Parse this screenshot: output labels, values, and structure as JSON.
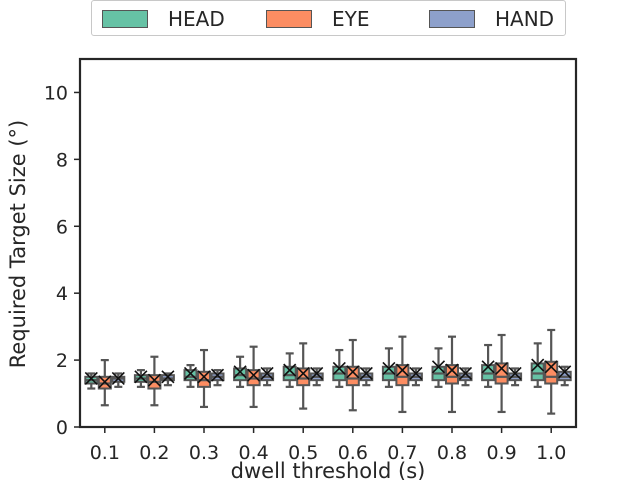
{
  "chart_data": {
    "type": "box",
    "title": "",
    "xlabel": "dwell threshold (s)",
    "ylabel": "Required Target Size (°)",
    "ylim": [
      0,
      11
    ],
    "yticks": [
      0,
      2,
      4,
      6,
      8,
      10
    ],
    "categories": [
      "0.1",
      "0.2",
      "0.3",
      "0.4",
      "0.5",
      "0.6",
      "0.7",
      "0.8",
      "0.9",
      "1.0"
    ],
    "legend_placement": "top-center",
    "mean_marker": "x",
    "series": [
      {
        "name": "HEAD",
        "color": "#66c2a5",
        "boxes": [
          {
            "whislo": 1.15,
            "q1": 1.3,
            "med": 1.4,
            "q3": 1.5,
            "whishi": 1.6,
            "mean": 1.45
          },
          {
            "whislo": 1.2,
            "q1": 1.35,
            "med": 1.45,
            "q3": 1.55,
            "whishi": 1.7,
            "mean": 1.5
          },
          {
            "whislo": 1.2,
            "q1": 1.4,
            "med": 1.5,
            "q3": 1.7,
            "whishi": 1.85,
            "mean": 1.6
          },
          {
            "whislo": 1.2,
            "q1": 1.4,
            "med": 1.55,
            "q3": 1.75,
            "whishi": 2.1,
            "mean": 1.65
          },
          {
            "whislo": 1.2,
            "q1": 1.4,
            "med": 1.55,
            "q3": 1.8,
            "whishi": 2.2,
            "mean": 1.7
          },
          {
            "whislo": 1.2,
            "q1": 1.4,
            "med": 1.6,
            "q3": 1.8,
            "whishi": 2.3,
            "mean": 1.75
          },
          {
            "whislo": 1.2,
            "q1": 1.4,
            "med": 1.6,
            "q3": 1.8,
            "whishi": 2.35,
            "mean": 1.75
          },
          {
            "whislo": 1.2,
            "q1": 1.4,
            "med": 1.6,
            "q3": 1.8,
            "whishi": 2.35,
            "mean": 1.8
          },
          {
            "whislo": 1.2,
            "q1": 1.4,
            "med": 1.6,
            "q3": 1.85,
            "whishi": 2.45,
            "mean": 1.8
          },
          {
            "whislo": 1.2,
            "q1": 1.4,
            "med": 1.6,
            "q3": 1.9,
            "whishi": 2.5,
            "mean": 1.85
          }
        ]
      },
      {
        "name": "EYE",
        "color": "#fc8d62",
        "boxes": [
          {
            "whislo": 0.65,
            "q1": 1.15,
            "med": 1.3,
            "q3": 1.5,
            "whishi": 2.0,
            "mean": 1.35
          },
          {
            "whislo": 0.65,
            "q1": 1.15,
            "med": 1.35,
            "q3": 1.55,
            "whishi": 2.1,
            "mean": 1.4
          },
          {
            "whislo": 0.6,
            "q1": 1.2,
            "med": 1.4,
            "q3": 1.65,
            "whishi": 2.3,
            "mean": 1.5
          },
          {
            "whislo": 0.6,
            "q1": 1.25,
            "med": 1.45,
            "q3": 1.7,
            "whishi": 2.4,
            "mean": 1.55
          },
          {
            "whislo": 0.55,
            "q1": 1.25,
            "med": 1.45,
            "q3": 1.75,
            "whishi": 2.5,
            "mean": 1.6
          },
          {
            "whislo": 0.5,
            "q1": 1.25,
            "med": 1.45,
            "q3": 1.8,
            "whishi": 2.6,
            "mean": 1.65
          },
          {
            "whislo": 0.45,
            "q1": 1.25,
            "med": 1.5,
            "q3": 1.85,
            "whishi": 2.7,
            "mean": 1.7
          },
          {
            "whislo": 0.45,
            "q1": 1.3,
            "med": 1.5,
            "q3": 1.85,
            "whishi": 2.7,
            "mean": 1.7
          },
          {
            "whislo": 0.45,
            "q1": 1.3,
            "med": 1.5,
            "q3": 1.9,
            "whishi": 2.75,
            "mean": 1.75
          },
          {
            "whislo": 0.4,
            "q1": 1.3,
            "med": 1.5,
            "q3": 1.95,
            "whishi": 2.9,
            "mean": 1.8
          }
        ]
      },
      {
        "name": "HAND",
        "color": "#8da0cb",
        "boxes": [
          {
            "whislo": 1.2,
            "q1": 1.35,
            "med": 1.45,
            "q3": 1.5,
            "whishi": 1.6,
            "mean": 1.45
          },
          {
            "whislo": 1.25,
            "q1": 1.4,
            "med": 1.45,
            "q3": 1.55,
            "whishi": 1.6,
            "mean": 1.5
          },
          {
            "whislo": 1.25,
            "q1": 1.4,
            "med": 1.5,
            "q3": 1.6,
            "whishi": 1.7,
            "mean": 1.55
          },
          {
            "whislo": 1.25,
            "q1": 1.4,
            "med": 1.5,
            "q3": 1.6,
            "whishi": 1.75,
            "mean": 1.6
          },
          {
            "whislo": 1.25,
            "q1": 1.4,
            "med": 1.5,
            "q3": 1.6,
            "whishi": 1.75,
            "mean": 1.6
          },
          {
            "whislo": 1.25,
            "q1": 1.4,
            "med": 1.5,
            "q3": 1.6,
            "whishi": 1.75,
            "mean": 1.6
          },
          {
            "whislo": 1.25,
            "q1": 1.4,
            "med": 1.5,
            "q3": 1.6,
            "whishi": 1.75,
            "mean": 1.6
          },
          {
            "whislo": 1.25,
            "q1": 1.4,
            "med": 1.5,
            "q3": 1.6,
            "whishi": 1.75,
            "mean": 1.6
          },
          {
            "whislo": 1.25,
            "q1": 1.4,
            "med": 1.5,
            "q3": 1.6,
            "whishi": 1.75,
            "mean": 1.6
          },
          {
            "whislo": 1.25,
            "q1": 1.4,
            "med": 1.5,
            "q3": 1.65,
            "whishi": 1.8,
            "mean": 1.65
          }
        ]
      }
    ]
  }
}
